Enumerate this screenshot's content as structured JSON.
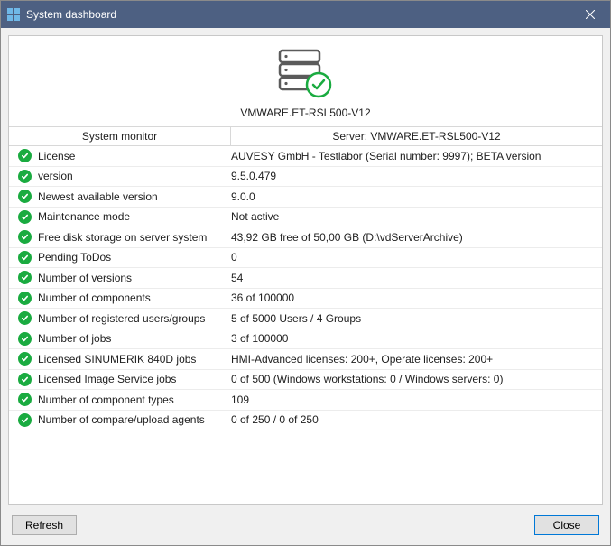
{
  "window": {
    "title": "System dashboard"
  },
  "server": {
    "name": "VMWARE.ET-RSL500-V12"
  },
  "headers": {
    "left": "System monitor",
    "right": "Server: VMWARE.ET-RSL500-V12"
  },
  "colors": {
    "titlebar_bg": "#4d6082",
    "ok_green": "#1aab40",
    "accent": "#0078d7",
    "border": "#c8c8c8"
  },
  "rows": [
    {
      "status": "ok",
      "label": "License",
      "value": "AUVESY GmbH - Testlabor (Serial number: 9997); BETA version"
    },
    {
      "status": "ok",
      "label": "version",
      "value": "9.5.0.479"
    },
    {
      "status": "ok",
      "label": "Newest available version",
      "value": "9.0.0"
    },
    {
      "status": "ok",
      "label": "Maintenance mode",
      "value": "Not active"
    },
    {
      "status": "ok",
      "label": "Free disk storage on server system",
      "value": "43,92 GB free of 50,00 GB (D:\\vdServerArchive)"
    },
    {
      "status": "ok",
      "label": "Pending ToDos",
      "value": "0"
    },
    {
      "status": "ok",
      "label": "Number of versions",
      "value": "54"
    },
    {
      "status": "ok",
      "label": "Number of components",
      "value": "36 of 100000"
    },
    {
      "status": "ok",
      "label": "Number of registered users/groups",
      "value": "5 of 5000 Users / 4 Groups"
    },
    {
      "status": "ok",
      "label": "Number of jobs",
      "value": "3 of 100000"
    },
    {
      "status": "ok",
      "label": "Licensed SINUMERIK 840D jobs",
      "value": "HMI-Advanced licenses: 200+, Operate licenses: 200+"
    },
    {
      "status": "ok",
      "label": "Licensed Image Service jobs",
      "value": "0 of 500 (Windows workstations: 0 / Windows servers: 0)"
    },
    {
      "status": "ok",
      "label": "Number of component types",
      "value": "109"
    },
    {
      "status": "ok",
      "label": "Number of compare/upload agents",
      "value": "0 of 250 / 0 of 250"
    }
  ],
  "buttons": {
    "refresh": "Refresh",
    "close": "Close"
  }
}
